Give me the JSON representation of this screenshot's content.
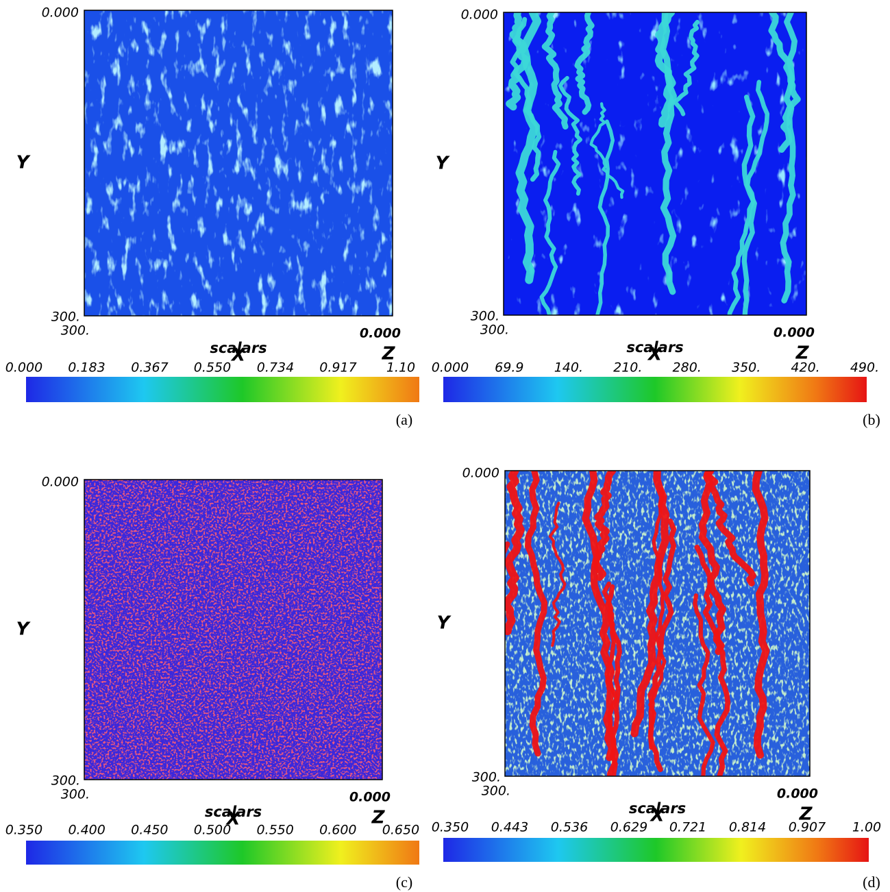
{
  "panels": [
    {
      "label": "(a)",
      "y_axis_title": "Y",
      "x_axis_title": "X",
      "z_axis_title": "Z",
      "colorbar_title": "scalars",
      "y_ticks": [
        {
          "value": 0,
          "label": "0.000"
        },
        {
          "value": 300,
          "label": "300."
        }
      ],
      "x_ticks": [
        {
          "value": 300,
          "label": "300."
        },
        {
          "value": 0,
          "label": "0.000"
        }
      ],
      "colorbar_ticks": [
        {
          "value": 0,
          "label": "0.000"
        },
        0.183,
        0.367,
        {
          "value": 0.55,
          "label": "0.550"
        },
        0.734,
        0.917,
        {
          "value": 1.1,
          "label": "1.10"
        }
      ]
    },
    {
      "label": "(b)",
      "y_axis_title": "Y",
      "x_axis_title": "X",
      "z_axis_title": "Z",
      "colorbar_title": "scalars",
      "y_ticks": [
        {
          "value": 0,
          "label": "0.000"
        },
        {
          "value": 300,
          "label": "300."
        }
      ],
      "x_ticks": [
        {
          "value": 300,
          "label": "300."
        },
        {
          "value": 0,
          "label": "0.000"
        }
      ],
      "colorbar_ticks": [
        {
          "value": 0,
          "label": "0.000"
        },
        69.9,
        {
          "value": 140,
          "label": "140."
        },
        {
          "value": 210,
          "label": "210."
        },
        {
          "value": 280,
          "label": "280."
        },
        {
          "value": 350,
          "label": "350."
        },
        {
          "value": 420,
          "label": "420."
        },
        {
          "value": 490,
          "label": "490."
        }
      ]
    },
    {
      "label": "(c)",
      "y_axis_title": "Y",
      "x_axis_title": "X",
      "z_axis_title": "Z",
      "colorbar_title": "scalars",
      "y_ticks": [
        {
          "value": 0,
          "label": "0.000"
        },
        {
          "value": 300,
          "label": "300."
        }
      ],
      "x_ticks": [
        {
          "value": 300,
          "label": "300."
        },
        {
          "value": 0,
          "label": "0.000"
        }
      ],
      "colorbar_ticks": [
        {
          "value": 0.35,
          "label": "0.350"
        },
        {
          "value": 0.4,
          "label": "0.400"
        },
        {
          "value": 0.45,
          "label": "0.450"
        },
        {
          "value": 0.5,
          "label": "0.500"
        },
        {
          "value": 0.55,
          "label": "0.550"
        },
        {
          "value": 0.6,
          "label": "0.600"
        },
        {
          "value": 0.65,
          "label": "0.650"
        }
      ]
    },
    {
      "label": "(d)",
      "y_axis_title": "Y",
      "x_axis_title": "X",
      "z_axis_title": "Z",
      "colorbar_title": "scalars",
      "y_ticks": [
        {
          "value": 0,
          "label": "0.000"
        },
        {
          "value": 300,
          "label": "300."
        }
      ],
      "x_ticks": [
        {
          "value": 300,
          "label": "300."
        },
        {
          "value": 0,
          "label": "0.000"
        }
      ],
      "colorbar_ticks": [
        {
          "value": 0.35,
          "label": "0.350"
        },
        0.443,
        0.536,
        0.629,
        0.721,
        0.814,
        0.907,
        {
          "value": 1,
          "label": "1.00"
        }
      ]
    }
  ]
}
